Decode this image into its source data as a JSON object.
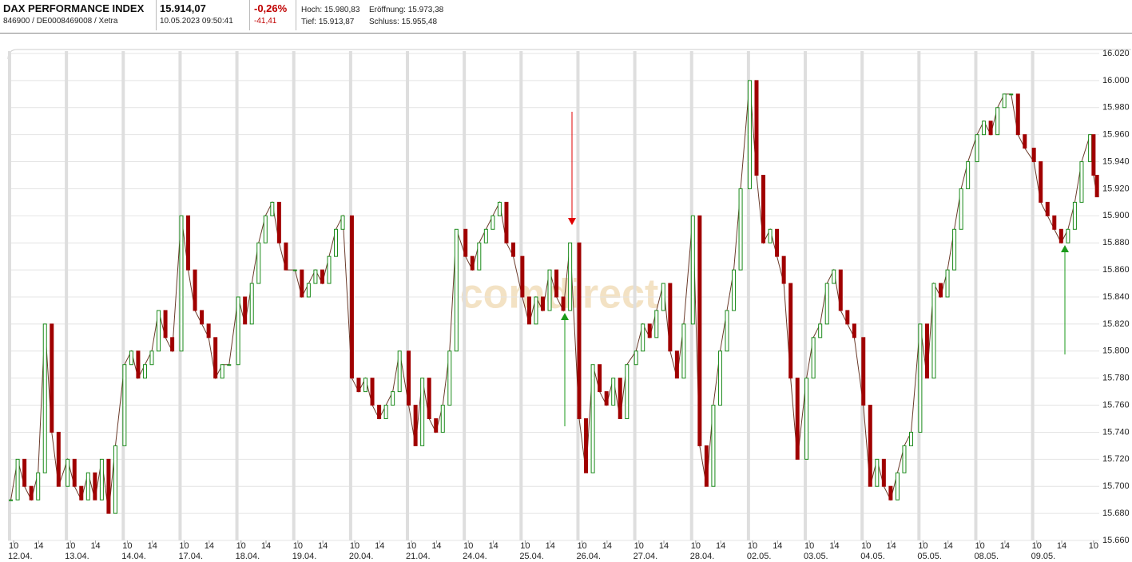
{
  "header": {
    "name": "DAX PERFORMANCE INDEX",
    "ids": "846900 / DE0008469008 / Xetra",
    "price": "15.914,07",
    "timestamp": "10.05.2023 09:50:41",
    "change_pct": "-0,26%",
    "change_abs": "-41,41",
    "high": "Hoch: 15.980,83",
    "open": "Eröffnung: 15.973,38",
    "low": "Tief: 15.913,87",
    "close": "Schluss: 15.955,48"
  },
  "watermark": "comdirect",
  "chart_data": {
    "type": "candle-line",
    "up_color": "#1a8a1a",
    "down_color": "#a00000",
    "xlim": [
      0,
      19.2
    ],
    "ylim": [
      15660,
      16020
    ],
    "yticks": [
      {
        "value": 15660,
        "label": "15.660"
      },
      {
        "value": 15680,
        "label": "15.680"
      },
      {
        "value": 15700,
        "label": "15.700"
      },
      {
        "value": 15720,
        "label": "15.720"
      },
      {
        "value": 15740,
        "label": "15.740"
      },
      {
        "value": 15760,
        "label": "15.760"
      },
      {
        "value": 15780,
        "label": "15.780"
      },
      {
        "value": 15800,
        "label": "15.800"
      },
      {
        "value": 15820,
        "label": "15.820"
      },
      {
        "value": 15840,
        "label": "15.840"
      },
      {
        "value": 15860,
        "label": "15.860"
      },
      {
        "value": 15880,
        "label": "15.880"
      },
      {
        "value": 15900,
        "label": "15.900"
      },
      {
        "value": 15920,
        "label": "15.920"
      },
      {
        "value": 15940,
        "label": "15.940"
      },
      {
        "value": 15960,
        "label": "15.960"
      },
      {
        "value": 15980,
        "label": "15.980"
      },
      {
        "value": 16000,
        "label": "16.000"
      },
      {
        "value": 16020,
        "label": "16.020"
      }
    ],
    "xticks": [
      {
        "value": 0.1,
        "label": "10"
      },
      {
        "value": 0.54,
        "label": "14"
      },
      {
        "value": 1.1,
        "label": "10"
      },
      {
        "value": 1.54,
        "label": "14"
      },
      {
        "value": 2.1,
        "label": "10"
      },
      {
        "value": 2.54,
        "label": "14"
      },
      {
        "value": 3.1,
        "label": "10"
      },
      {
        "value": 3.54,
        "label": "14"
      },
      {
        "value": 4.1,
        "label": "10"
      },
      {
        "value": 4.54,
        "label": "14"
      },
      {
        "value": 5.1,
        "label": "10"
      },
      {
        "value": 5.54,
        "label": "14"
      },
      {
        "value": 6.1,
        "label": "10"
      },
      {
        "value": 6.54,
        "label": "14"
      },
      {
        "value": 7.1,
        "label": "10"
      },
      {
        "value": 7.54,
        "label": "14"
      },
      {
        "value": 8.1,
        "label": "10"
      },
      {
        "value": 8.54,
        "label": "14"
      },
      {
        "value": 9.1,
        "label": "10"
      },
      {
        "value": 9.54,
        "label": "14"
      },
      {
        "value": 10.1,
        "label": "10"
      },
      {
        "value": 10.54,
        "label": "14"
      },
      {
        "value": 11.1,
        "label": "10"
      },
      {
        "value": 11.54,
        "label": "14"
      },
      {
        "value": 12.1,
        "label": "10"
      },
      {
        "value": 12.54,
        "label": "14"
      },
      {
        "value": 13.1,
        "label": "10"
      },
      {
        "value": 13.54,
        "label": "14"
      },
      {
        "value": 14.1,
        "label": "10"
      },
      {
        "value": 14.54,
        "label": "14"
      },
      {
        "value": 15.1,
        "label": "10"
      },
      {
        "value": 15.54,
        "label": "14"
      },
      {
        "value": 16.1,
        "label": "10"
      },
      {
        "value": 16.54,
        "label": "14"
      },
      {
        "value": 17.1,
        "label": "10"
      },
      {
        "value": 17.54,
        "label": "14"
      },
      {
        "value": 18.1,
        "label": "10"
      },
      {
        "value": 18.54,
        "label": "14"
      },
      {
        "value": 19.1,
        "label": "10"
      }
    ],
    "date_ticks": [
      {
        "value": 0,
        "label": "12.04."
      },
      {
        "value": 1,
        "label": "13.04."
      },
      {
        "value": 2,
        "label": "14.04."
      },
      {
        "value": 3,
        "label": "17.04."
      },
      {
        "value": 4,
        "label": "18.04."
      },
      {
        "value": 5,
        "label": "19.04."
      },
      {
        "value": 6,
        "label": "20.04."
      },
      {
        "value": 7,
        "label": "21.04."
      },
      {
        "value": 8,
        "label": "24.04."
      },
      {
        "value": 9,
        "label": "25.04."
      },
      {
        "value": 10,
        "label": "26.04."
      },
      {
        "value": 11,
        "label": "27.04."
      },
      {
        "value": 12,
        "label": "28.04."
      },
      {
        "value": 13,
        "label": "02.05."
      },
      {
        "value": 14,
        "label": "03.05."
      },
      {
        "value": 15,
        "label": "04.05."
      },
      {
        "value": 16,
        "label": "05.05."
      },
      {
        "value": 17,
        "label": "08.05."
      },
      {
        "value": 18,
        "label": "09.05."
      }
    ],
    "x": [
      0.05,
      0.17,
      0.29,
      0.41,
      0.53,
      0.65,
      0.77,
      0.89,
      1.05,
      1.17,
      1.29,
      1.41,
      1.53,
      1.65,
      1.77,
      1.89,
      2.05,
      2.17,
      2.29,
      2.41,
      2.53,
      2.65,
      2.77,
      2.89,
      3.05,
      3.17,
      3.29,
      3.41,
      3.53,
      3.65,
      3.77,
      3.89,
      4.05,
      4.17,
      4.29,
      4.41,
      4.53,
      4.65,
      4.77,
      4.89,
      5.05,
      5.17,
      5.29,
      5.41,
      5.53,
      5.65,
      5.77,
      5.89,
      6.05,
      6.17,
      6.29,
      6.41,
      6.53,
      6.65,
      6.77,
      6.89,
      7.05,
      7.17,
      7.29,
      7.41,
      7.53,
      7.65,
      7.77,
      7.89,
      8.05,
      8.17,
      8.29,
      8.41,
      8.53,
      8.65,
      8.77,
      8.89,
      9.05,
      9.17,
      9.29,
      9.41,
      9.53,
      9.65,
      9.77,
      9.89,
      10.05,
      10.17,
      10.29,
      10.41,
      10.53,
      10.65,
      10.77,
      10.89,
      11.05,
      11.17,
      11.29,
      11.41,
      11.53,
      11.65,
      11.77,
      11.89,
      12.05,
      12.17,
      12.29,
      12.41,
      12.53,
      12.65,
      12.77,
      12.89,
      13.05,
      13.17,
      13.29,
      13.41,
      13.53,
      13.65,
      13.77,
      13.89,
      14.05,
      14.17,
      14.29,
      14.41,
      14.53,
      14.65,
      14.77,
      14.89,
      15.05,
      15.17,
      15.29,
      15.41,
      15.53,
      15.65,
      15.77,
      15.89,
      16.05,
      16.17,
      16.29,
      16.41,
      16.53,
      16.65,
      16.77,
      16.89,
      17.05,
      17.17,
      17.29,
      17.41,
      17.53,
      17.65,
      17.77,
      17.89,
      18.05,
      18.17,
      18.29,
      18.41,
      18.53,
      18.65,
      18.77,
      18.89,
      19.04,
      19.1,
      19.16
    ],
    "values": [
      15690,
      15720,
      15700,
      15690,
      15710,
      15820,
      15740,
      15700,
      15720,
      15700,
      15690,
      15710,
      15690,
      15720,
      15680,
      15730,
      15790,
      15800,
      15780,
      15790,
      15800,
      15830,
      15810,
      15800,
      15900,
      15860,
      15830,
      15820,
      15810,
      15780,
      15790,
      15790,
      15840,
      15820,
      15850,
      15880,
      15900,
      15910,
      15880,
      15860,
      15860,
      15840,
      15850,
      15860,
      15850,
      15870,
      15890,
      15900,
      15780,
      15770,
      15780,
      15760,
      15750,
      15760,
      15770,
      15800,
      15760,
      15730,
      15780,
      15750,
      15740,
      15760,
      15800,
      15890,
      15870,
      15860,
      15880,
      15890,
      15900,
      15910,
      15880,
      15870,
      15840,
      15820,
      15840,
      15830,
      15860,
      15840,
      15830,
      15880,
      15750,
      15710,
      15790,
      15770,
      15760,
      15780,
      15750,
      15790,
      15800,
      15820,
      15810,
      15830,
      15850,
      15800,
      15780,
      15820,
      15900,
      15730,
      15700,
      15760,
      15800,
      15830,
      15860,
      15920,
      16000,
      15930,
      15880,
      15890,
      15870,
      15850,
      15780,
      15720,
      15780,
      15810,
      15820,
      15850,
      15860,
      15830,
      15820,
      15810,
      15760,
      15700,
      15720,
      15700,
      15690,
      15710,
      15730,
      15740,
      15820,
      15780,
      15850,
      15840,
      15860,
      15890,
      15920,
      15940,
      15960,
      15970,
      15960,
      15980,
      15990,
      15990,
      15960,
      15950,
      15940,
      15910,
      15900,
      15890,
      15880,
      15890,
      15910,
      15940,
      15960,
      15930,
      15914
    ]
  }
}
